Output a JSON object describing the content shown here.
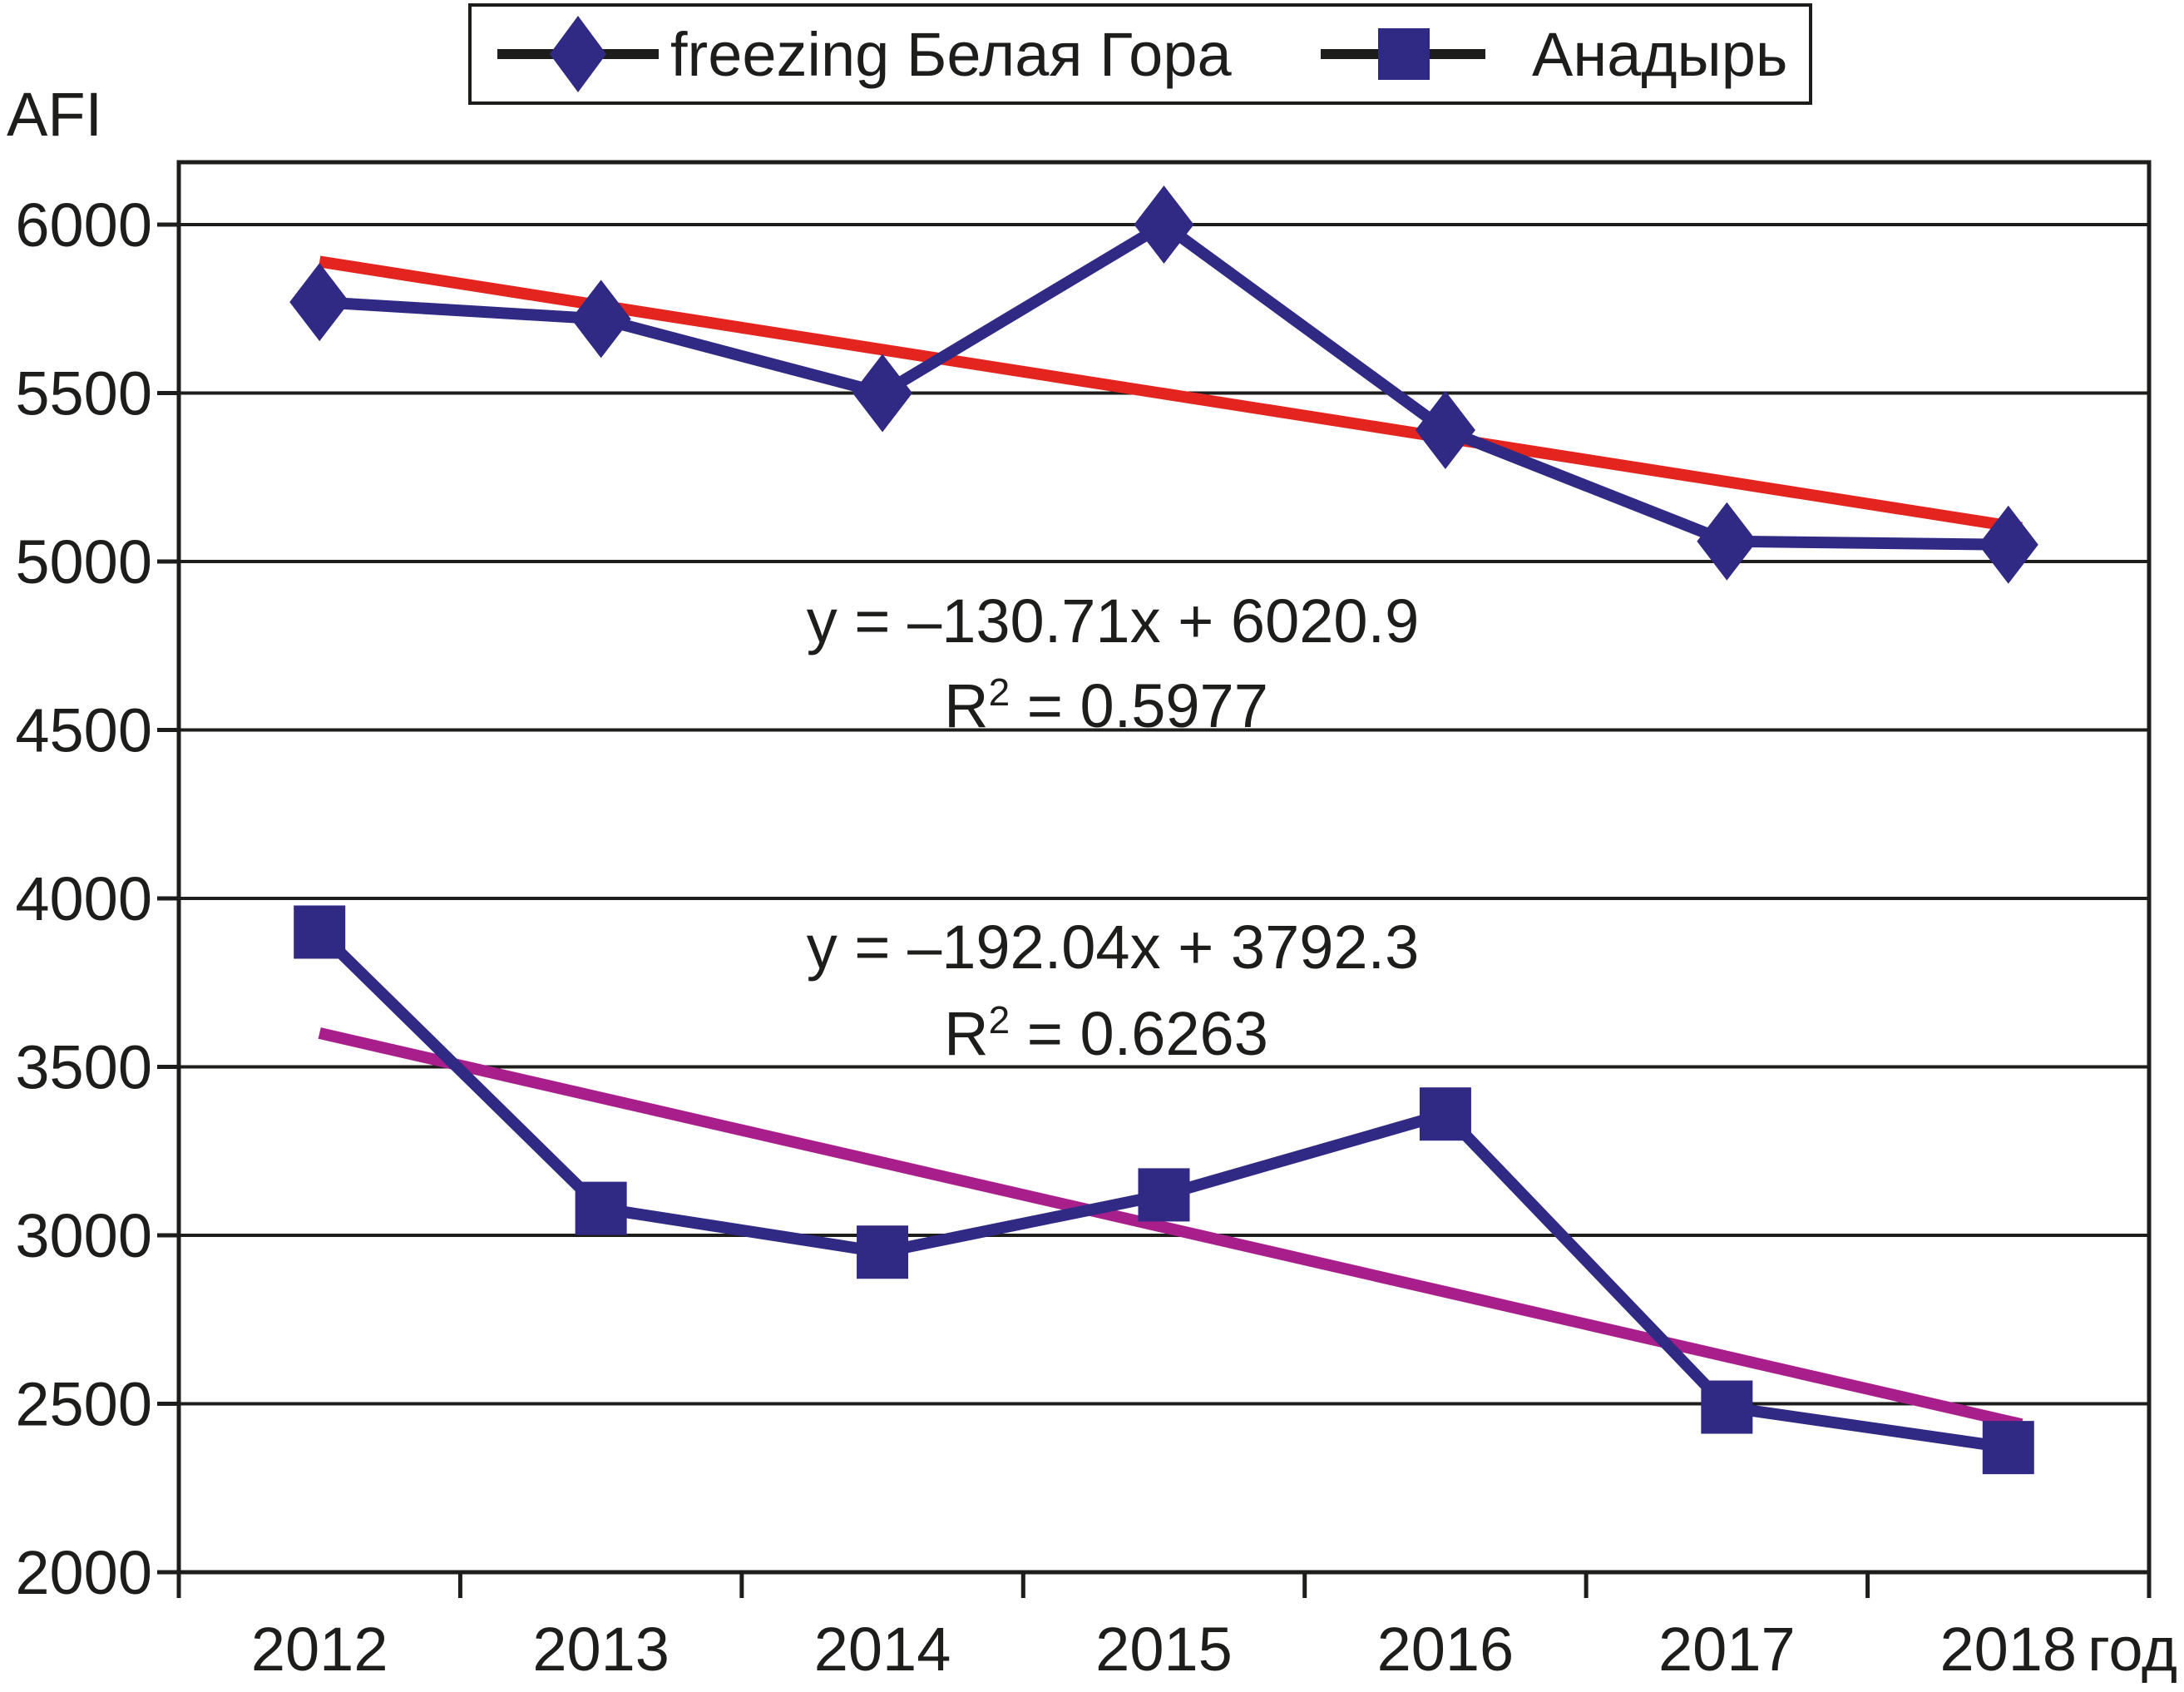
{
  "chart_data": {
    "type": "line",
    "ylabel": "AFI",
    "xlabel_suffix": "год",
    "x": [
      2012,
      2013,
      2014,
      2015,
      2016,
      2017,
      2018
    ],
    "y_ticks": [
      6000,
      5500,
      5000,
      4500,
      4000,
      3500,
      3000,
      2500,
      2000
    ],
    "ylim": [
      2000,
      6185
    ],
    "grid": "horizontal",
    "legend_position": "top-center",
    "colors": {
      "series": "#312a84",
      "trend_1": "#e3241f",
      "trend_2": "#a81f8c",
      "axis_and_text": "#1d1d1b",
      "background": "#ffffff"
    },
    "series": [
      {
        "name": "freezing Белая Гора",
        "marker": "diamond",
        "color": "#312a84",
        "values": [
          5770,
          5720,
          5500,
          6000,
          5390,
          5060,
          5050
        ]
      },
      {
        "name": "Анадырь",
        "marker": "square",
        "color": "#312a84",
        "values": [
          3900,
          3080,
          2950,
          3120,
          3360,
          2490,
          2370
        ]
      }
    ],
    "trendlines": [
      {
        "for": "freezing Белая Гора",
        "color": "#e3241f",
        "slope": -130.71,
        "intercept": 6020.9,
        "r2": 0.5977,
        "label_equation": "y = –130.71x + 6020.9",
        "label_r2_base": "R",
        "label_r2_exp": "2",
        "label_r2_rest": " = 0.5977"
      },
      {
        "for": "Анадырь",
        "color": "#a81f8c",
        "slope": -192.04,
        "intercept": 3792.3,
        "r2": 0.6263,
        "label_equation": "y = –192.04x + 3792.3",
        "label_r2_base": "R",
        "label_r2_exp": "2",
        "label_r2_rest": " = 0.6263"
      }
    ]
  }
}
